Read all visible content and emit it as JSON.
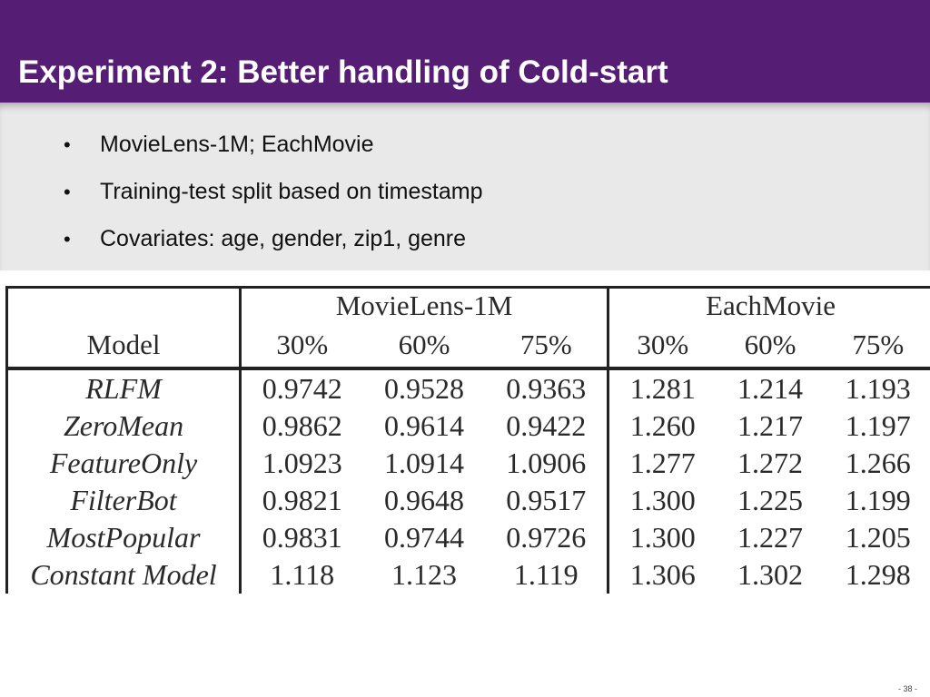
{
  "slide": {
    "title": "Experiment 2: Better handling of Cold-start",
    "bullet_char": "•",
    "bullets": [
      "MovieLens-1M; EachMovie",
      "Training-test split based on timestamp",
      "Covariates: age, gender, zip1, genre"
    ],
    "page_number": "- 38 -"
  },
  "table": {
    "model_header": "Model",
    "groups": [
      "MovieLens-1M",
      "EachMovie"
    ],
    "splits": [
      "30%",
      "60%",
      "75%"
    ],
    "rows": [
      {
        "model": "RLFM",
        "values": [
          "0.9742",
          "0.9528",
          "0.9363",
          "1.281",
          "1.214",
          "1.193"
        ]
      },
      {
        "model": "ZeroMean",
        "values": [
          "0.9862",
          "0.9614",
          "0.9422",
          "1.260",
          "1.217",
          "1.197"
        ]
      },
      {
        "model": "FeatureOnly",
        "values": [
          "1.0923",
          "1.0914",
          "1.0906",
          "1.277",
          "1.272",
          "1.266"
        ]
      },
      {
        "model": "FilterBot",
        "values": [
          "0.9821",
          "0.9648",
          "0.9517",
          "1.300",
          "1.225",
          "1.199"
        ]
      },
      {
        "model": "MostPopular",
        "values": [
          "0.9831",
          "0.9744",
          "0.9726",
          "1.300",
          "1.227",
          "1.205"
        ]
      },
      {
        "model": "Constant Model",
        "values": [
          "1.118",
          "1.123",
          "1.119",
          "1.306",
          "1.302",
          "1.298"
        ]
      }
    ]
  },
  "colors": {
    "title_bar": "#561d74",
    "title_text": "#ffffff",
    "bullet_panel": "#e9e9e9"
  }
}
